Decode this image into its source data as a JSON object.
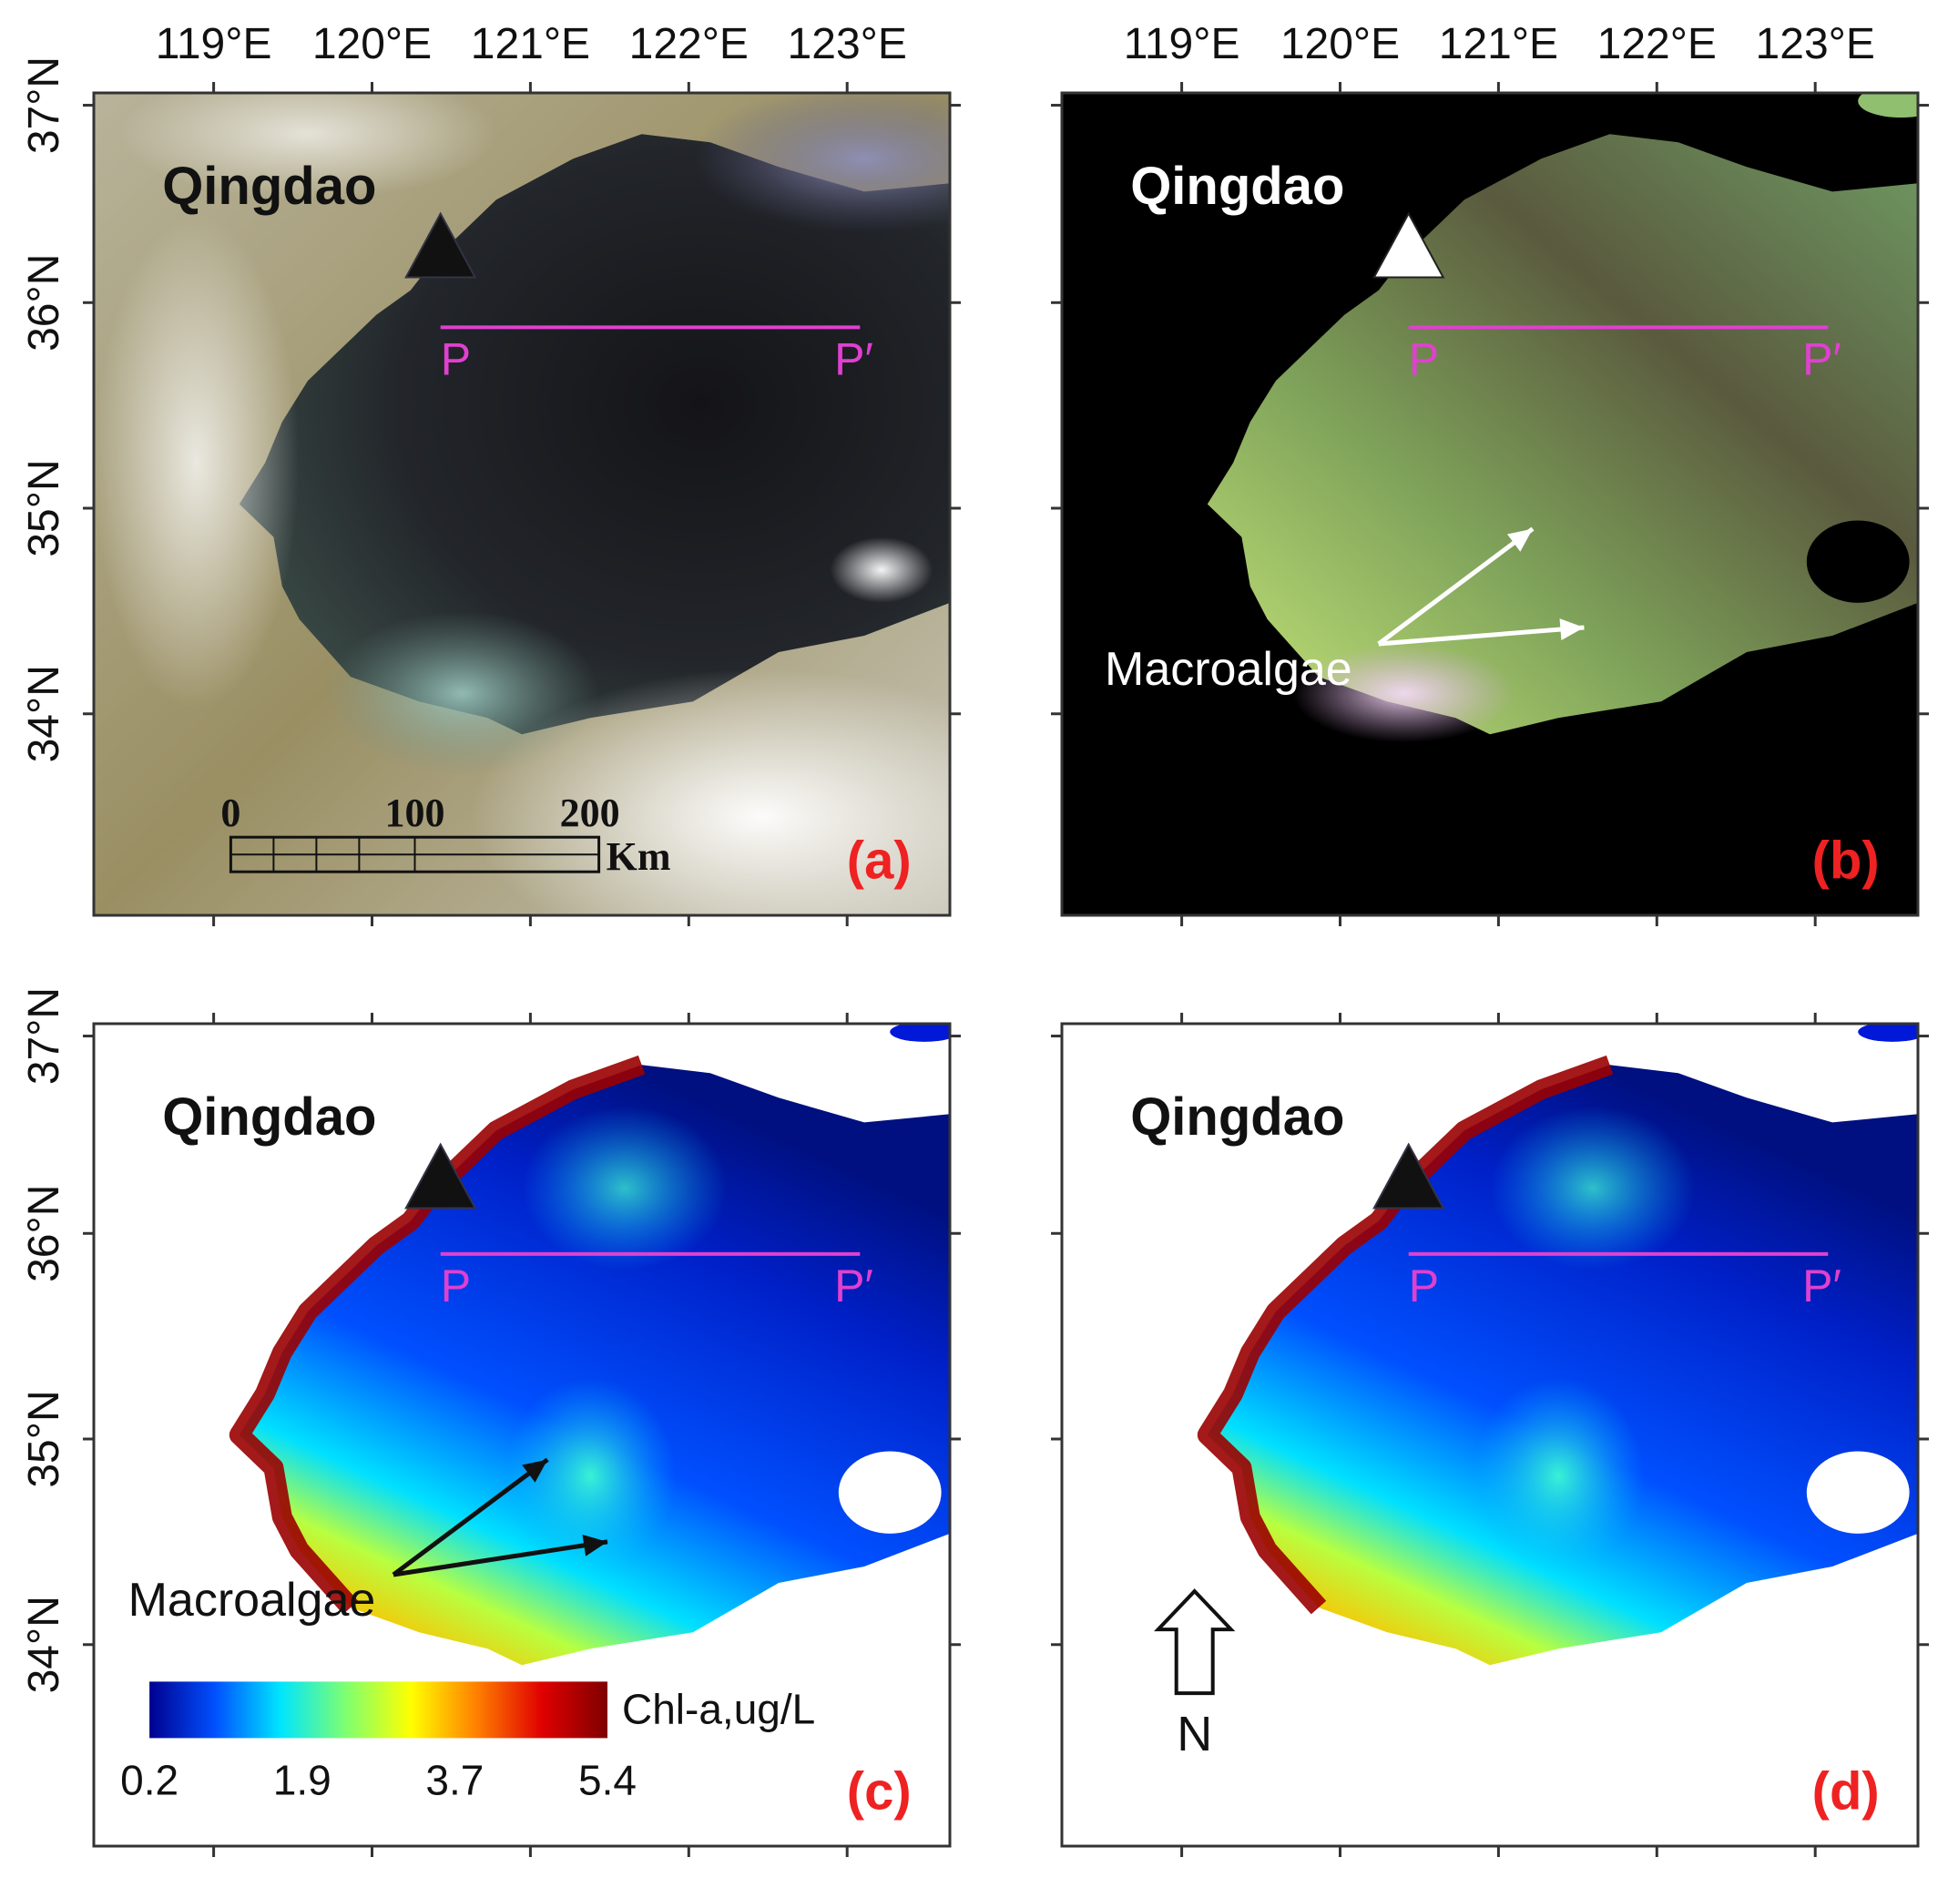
{
  "figure": {
    "lon_ticks": [
      "119°E",
      "120°E",
      "121°E",
      "122°E",
      "123°E"
    ],
    "lat_ticks": [
      "37°N",
      "36°N",
      "35°N",
      "34°N"
    ],
    "city_label": "Qingdao",
    "transect_start": "P",
    "transect_end": "P′",
    "annotation_macroalgae": "Macroalgae",
    "north_label": "N",
    "scale_bar": {
      "labels": [
        "0",
        "100",
        "200"
      ],
      "unit": "Km"
    },
    "colorbar": {
      "title": "Chl-a,ug/L",
      "tick_labels": [
        "0.2",
        "1.9",
        "3.7",
        "5.4"
      ],
      "colors": [
        "#00008f",
        "#0050ff",
        "#00e5ff",
        "#7fff70",
        "#ffff00",
        "#ff8000",
        "#e00000",
        "#7f0000"
      ]
    },
    "panels": [
      {
        "id": "a",
        "label": "(a)",
        "kind": "true-color"
      },
      {
        "id": "b",
        "label": "(b)",
        "kind": "false-color"
      },
      {
        "id": "c",
        "label": "(c)",
        "kind": "chl-a"
      },
      {
        "id": "d",
        "label": "(d)",
        "kind": "chl-a"
      }
    ],
    "colors": {
      "panel_label": "#ee2222",
      "transect": "#e040d0",
      "frame": "#333333"
    }
  }
}
